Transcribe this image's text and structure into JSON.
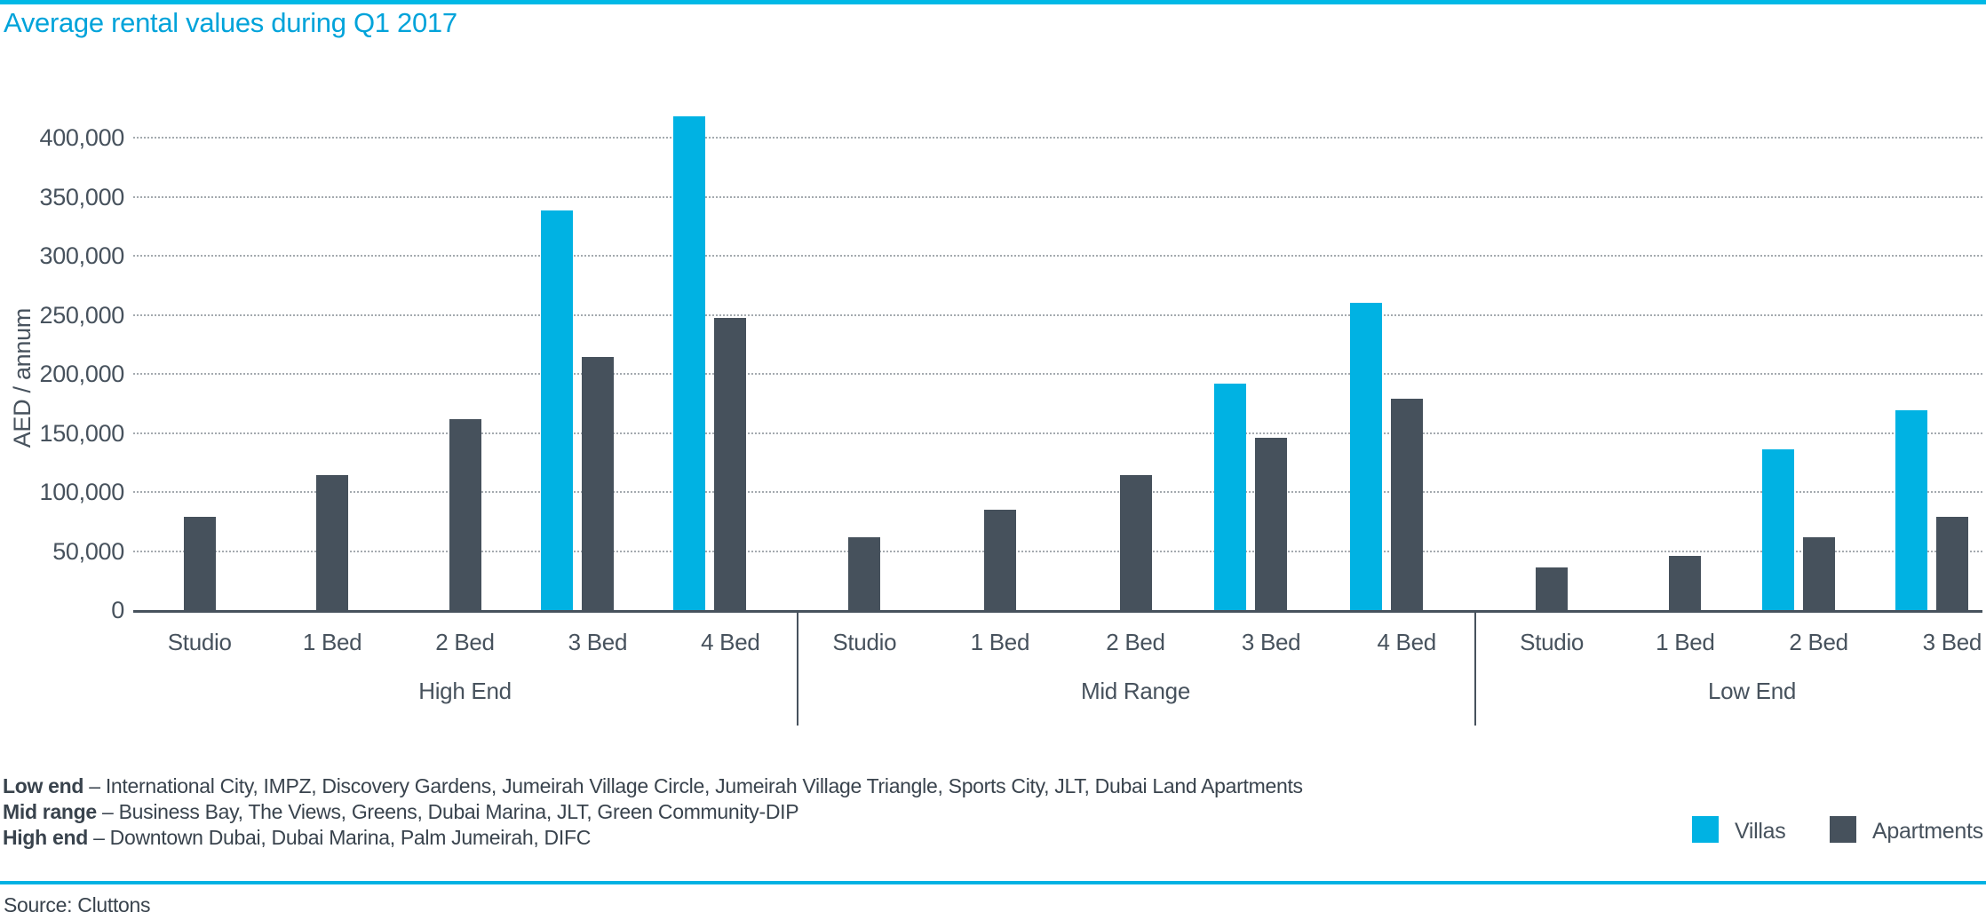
{
  "page": {
    "title": "Average rental values during Q1 2017",
    "source": "Source: Cluttons"
  },
  "colors": {
    "villas": "#00b2e3",
    "apartments": "#46515c",
    "title_blue": "#00a3da",
    "top_line": "#00b9e6",
    "bottom_line": "#00b2e3",
    "axis_text": "#47525d",
    "grid_dots": "#a4aaaf"
  },
  "legend": [
    {
      "label": "Villas",
      "color": "#00b2e3"
    },
    {
      "label": "Apartments",
      "color": "#46515c"
    }
  ],
  "footnotes": [
    {
      "lead": "Low end",
      "rest": " – International City, IMPZ, Discovery Gardens, Jumeirah Village Circle, Jumeirah Village Triangle, Sports City, JLT, Dubai Land Apartments"
    },
    {
      "lead": "Mid range",
      "rest": " – Business Bay, The Views, Greens, Dubai Marina, JLT, Green Community-DIP"
    },
    {
      "lead": "High end",
      "rest": " – Downtown Dubai, Dubai Marina, Palm Jumeirah, DIFC"
    }
  ],
  "chart_data": {
    "type": "bar",
    "title": "Average rental values during Q1 2017",
    "xlabel": "",
    "ylabel": "AED / annum",
    "ylim": [
      0,
      450000
    ],
    "ytick_interval": 50000,
    "yticks": [
      "0",
      "50,000",
      "100,000",
      "150,000",
      "200,000",
      "250,000",
      "300,000",
      "350,000",
      "400,000"
    ],
    "grid": "dotted-horizontal",
    "legend_position": "bottom-right",
    "series_names": [
      "Villas",
      "Apartments"
    ],
    "groups": [
      {
        "label": "High End",
        "categories": [
          "Studio",
          "1 Bed",
          "2 Bed",
          "3 Bed",
          "4 Bed"
        ],
        "villas": [
          null,
          null,
          null,
          338000,
          418000
        ],
        "apartments": [
          79000,
          114000,
          162000,
          214000,
          247000
        ]
      },
      {
        "label": "Mid Range",
        "categories": [
          "Studio",
          "1 Bed",
          "2 Bed",
          "3 Bed",
          "4 Bed"
        ],
        "villas": [
          null,
          null,
          null,
          192000,
          260000
        ],
        "apartments": [
          62000,
          85000,
          114000,
          146000,
          179000
        ]
      },
      {
        "label": "Low End",
        "categories": [
          "Studio",
          "1 Bed",
          "2 Bed",
          "3 Bed"
        ],
        "villas": [
          null,
          null,
          136000,
          169000
        ],
        "apartments": [
          36000,
          46000,
          62000,
          79000
        ]
      }
    ]
  }
}
